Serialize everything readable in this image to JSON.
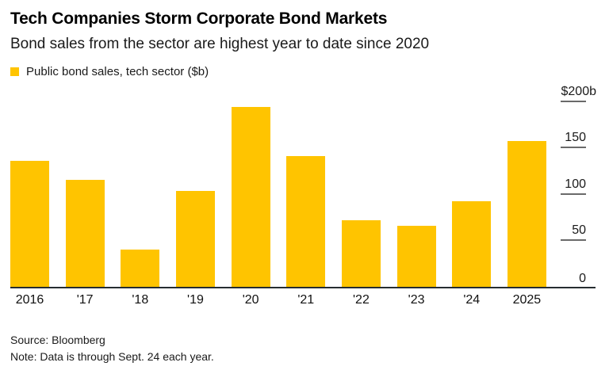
{
  "header": {
    "title": "Tech Companies Storm Corporate Bond Markets",
    "subtitle": "Bond sales from the sector are highest year to date since 2020"
  },
  "legend": {
    "swatch_color": "#FFC400",
    "label": "Public bond sales, tech sector ($b)"
  },
  "chart_data": {
    "type": "bar",
    "title": "Tech Companies Storm Corporate Bond Markets",
    "subtitle": "Bond sales from the sector are highest year to date since 2020",
    "series_label": "Public bond sales, tech sector ($b)",
    "categories": [
      "2016",
      "'17",
      "'18",
      "'19",
      "'20",
      "'21",
      "'22",
      "'23",
      "'24",
      "2025"
    ],
    "values": [
      136,
      115,
      40,
      103,
      194,
      141,
      72,
      66,
      92,
      157
    ],
    "unit": "$b",
    "bar_color": "#FFC400",
    "xlabel": "",
    "ylabel": "",
    "ylim": [
      0,
      200
    ],
    "y_ticks": [
      {
        "value": 200,
        "label": "$200b"
      },
      {
        "value": 150,
        "label": "150"
      },
      {
        "value": 100,
        "label": "100"
      },
      {
        "value": 50,
        "label": "50"
      },
      {
        "value": 0,
        "label": "0"
      }
    ],
    "axis_side": "right",
    "grid": false,
    "legend_position": "top-left"
  },
  "footer": {
    "source": "Source: Bloomberg",
    "note": "Note: Data is through Sept. 24 each year."
  }
}
